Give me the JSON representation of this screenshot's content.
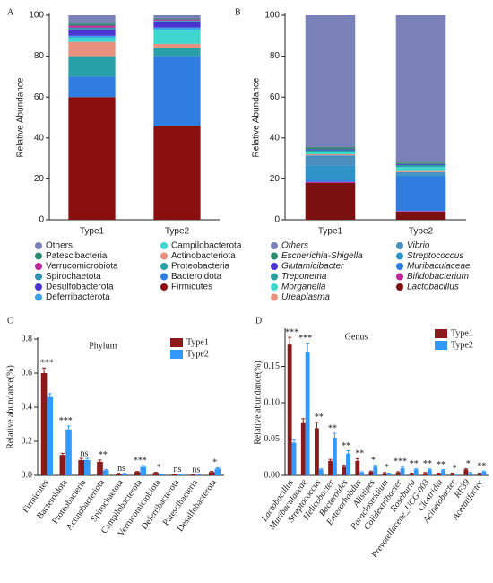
{
  "chart_data": [
    {
      "type": "bar",
      "stacked": true,
      "panel": "A",
      "ylabel": "Relative Abundance",
      "legend": "below",
      "categories": [
        "Type1",
        "Type2"
      ],
      "ylim": [
        0,
        100
      ],
      "yticks": [
        0,
        20,
        40,
        60,
        80,
        100
      ],
      "series": [
        {
          "name": "Firmicutes",
          "color": "#8b0f0f",
          "values": [
            60,
            46
          ]
        },
        {
          "name": "Bacteroidota",
          "color": "#2f7de0",
          "values": [
            10,
            34
          ]
        },
        {
          "name": "Proteobacteria",
          "color": "#27a0a8",
          "values": [
            10,
            4
          ]
        },
        {
          "name": "Actinobacteriota",
          "color": "#e8907e",
          "values": [
            7,
            2
          ]
        },
        {
          "name": "Campilobacterota",
          "color": "#3fd6cf",
          "values": [
            2,
            7
          ]
        },
        {
          "name": "Deferribacterota",
          "color": "#3aa0e8",
          "values": [
            1,
            1
          ]
        },
        {
          "name": "Desulfobacterota",
          "color": "#4a35d0",
          "values": [
            3,
            3
          ]
        },
        {
          "name": "Spirochaetota",
          "color": "#2f93b0",
          "values": [
            1,
            0.5
          ]
        },
        {
          "name": "Verrucomicrobiota",
          "color": "#c0259a",
          "values": [
            1,
            0.5
          ]
        },
        {
          "name": "Patescibacteria",
          "color": "#2e8b70",
          "values": [
            1,
            0.5
          ]
        },
        {
          "name": "Others",
          "color": "#7a80b8",
          "values": [
            4,
            1.5
          ]
        }
      ]
    },
    {
      "type": "bar",
      "stacked": true,
      "panel": "B",
      "ylabel": "Relative Abundance",
      "legend": "below",
      "label_style": "italic",
      "categories": [
        "Type1",
        "Type2"
      ],
      "ylim": [
        0,
        100
      ],
      "yticks": [
        0,
        20,
        40,
        60,
        80,
        100
      ],
      "series": [
        {
          "name": "Lactobacillus",
          "color": "#7a1010",
          "values": [
            18,
            4
          ]
        },
        {
          "name": "Bifidobacterium",
          "color": "#c0259a",
          "values": [
            0.5,
            0.3
          ]
        },
        {
          "name": "Muribaculaceae",
          "color": "#2f7de0",
          "values": [
            1,
            17
          ]
        },
        {
          "name": "Streptococcus",
          "color": "#2f93c8",
          "values": [
            7,
            1
          ]
        },
        {
          "name": "Vibrio",
          "color": "#4a8fc0",
          "values": [
            5,
            1
          ]
        },
        {
          "name": "Ureaplasma",
          "color": "#e8907e",
          "values": [
            0.5,
            0.5
          ]
        },
        {
          "name": "Morganella",
          "color": "#3fd6cf",
          "values": [
            1,
            2
          ]
        },
        {
          "name": "Treponema",
          "color": "#2aa0a0",
          "values": [
            1,
            1
          ]
        },
        {
          "name": "Glutamicibacter",
          "color": "#4a35d0",
          "values": [
            0.5,
            0.5
          ]
        },
        {
          "name": "Escherichia-Shigella",
          "color": "#2e8b70",
          "values": [
            1,
            0.7
          ]
        },
        {
          "name": "Others",
          "color": "#7a80b8",
          "values": [
            64.5,
            72
          ]
        }
      ]
    },
    {
      "type": "bar",
      "stacked": false,
      "panel": "C",
      "title": "Phylum",
      "ylabel": "Relative abundance(%)",
      "legend": "upper right",
      "categories": [
        "Firmicutes",
        "Bacteroidota",
        "Proteobacteria",
        "Actinobacteriota",
        "Spirochaetota",
        "Campilobacterota",
        "Verrucomicrobiota",
        "Deferribacterota",
        "Patescibacteria",
        "Desulfobacterota"
      ],
      "ylim": [
        0,
        0.8
      ],
      "yticks": [
        {
          "value": 0,
          "label": "0.0"
        },
        0.2,
        0.4,
        0.6,
        0.8
      ],
      "series": [
        {
          "name": "Type1",
          "color": "#8b1a1a",
          "values": [
            0.6,
            0.12,
            0.09,
            0.08,
            0.01,
            0.02,
            0.015,
            0.005,
            0.004,
            0.02
          ],
          "errors": [
            0.03,
            0.01,
            0.01,
            0.01,
            0.002,
            0.003,
            0.003,
            0.001,
            0.001,
            0.004
          ]
        },
        {
          "name": "Type2",
          "color": "#3399ff",
          "values": [
            0.46,
            0.27,
            0.09,
            0.03,
            0.01,
            0.05,
            0.005,
            0.003,
            0.002,
            0.04
          ],
          "errors": [
            0.02,
            0.02,
            0.01,
            0.005,
            0.002,
            0.008,
            0.001,
            0.001,
            0.001,
            0.005
          ]
        }
      ],
      "significance": [
        "***",
        "***",
        "ns",
        "**",
        "ns",
        "***",
        "*",
        "ns",
        "ns",
        "*"
      ],
      "significance_colors": [
        "#c0392b",
        "#3399ff",
        "#333",
        "#c0392b",
        "#333",
        "#3399ff",
        "#c0392b",
        "#333",
        "#333",
        "#c0392b"
      ]
    },
    {
      "type": "bar",
      "stacked": false,
      "panel": "D",
      "title": "Genus",
      "ylabel": "Relative abundance(%)",
      "legend": "upper right",
      "label_style": "italic",
      "categories": [
        "Lactobacillus",
        "Muribaculaceae",
        "Streptococcus",
        "Helicobacter",
        "Bacteroides",
        "Enterorhabdus",
        "Alistipes",
        "Paraclostridium",
        "Colidextribacter",
        "Roseburia",
        "Prevotellaceae_UCG-003",
        "Clostridia",
        "Acinetobacter",
        "RF39",
        "Acetatifactor"
      ],
      "ylim": [
        0,
        0.2
      ],
      "yticks": [
        {
          "value": 0,
          "label": "0.00"
        },
        {
          "value": 0.05,
          "label": "0.05"
        },
        {
          "value": 0.1,
          "label": "0.10"
        },
        {
          "value": 0.15,
          "label": "0.15"
        }
      ],
      "series": [
        {
          "name": "Type1",
          "color": "#8b1a1a",
          "values": [
            0.18,
            0.072,
            0.065,
            0.02,
            0.012,
            0.02,
            0.005,
            0.003,
            0.004,
            0.002,
            0.003,
            0.002,
            0.002,
            0.008,
            0.002
          ],
          "errors": [
            0.01,
            0.006,
            0.008,
            0.002,
            0.002,
            0.003,
            0.001,
            0.001,
            0.001,
            0.001,
            0.001,
            0.001,
            0.001,
            0.001,
            0.001
          ]
        },
        {
          "name": "Type2",
          "color": "#3399ff",
          "values": [
            0.045,
            0.17,
            0.008,
            0.052,
            0.03,
            0.004,
            0.012,
            0.002,
            0.01,
            0.008,
            0.008,
            0.007,
            0.001,
            0.003,
            0.005
          ],
          "errors": [
            0.004,
            0.012,
            0.001,
            0.006,
            0.004,
            0.001,
            0.002,
            0.001,
            0.002,
            0.001,
            0.001,
            0.001,
            0.001,
            0.001,
            0.001
          ]
        }
      ],
      "significance": [
        "***",
        "***",
        "**",
        "**",
        "**",
        "**",
        "*",
        "*",
        "***",
        "**",
        "**",
        "**",
        "*",
        "*",
        "**"
      ],
      "significance_colors": [
        "#c0392b",
        "#3399ff",
        "#c0392b",
        "#3399ff",
        "#3399ff",
        "#c0392b",
        "#3399ff",
        "#c0392b",
        "#3399ff",
        "#3399ff",
        "#3399ff",
        "#3399ff",
        "#c0392b",
        "#c0392b",
        "#3399ff"
      ]
    }
  ]
}
